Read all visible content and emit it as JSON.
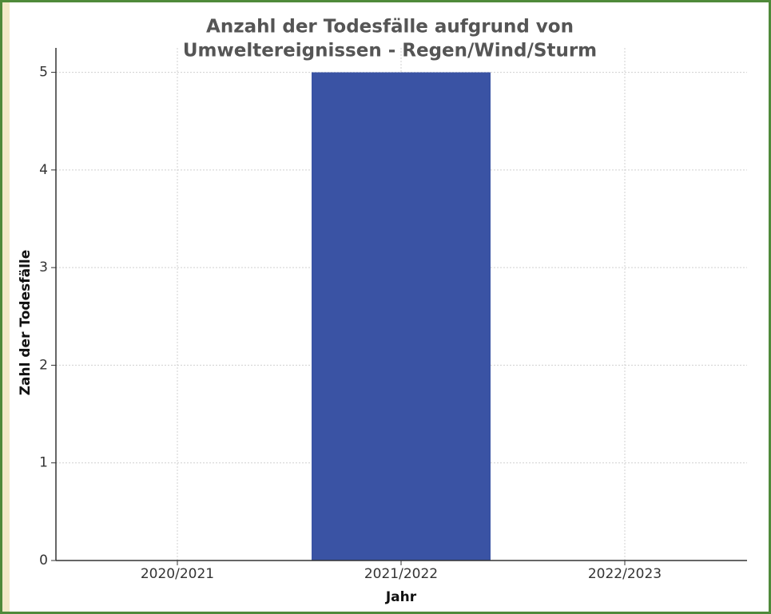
{
  "chart_data": {
    "type": "bar",
    "title": "Anzahl der Todesfälle aufgrund von",
    "subtitle": "Umweltereignissen - Regen/Wind/Sturm",
    "x_label": "Jahr",
    "y_label": "Zahl der Todesfälle",
    "categories": [
      "2020/2021",
      "2021/2022",
      "2022/2023"
    ],
    "values": [
      0,
      5,
      0
    ],
    "color": "#3a53a4",
    "ylim": [
      0,
      5.25
    ],
    "yticks": [
      0,
      1,
      2,
      3,
      4,
      5
    ],
    "grid": true
  }
}
